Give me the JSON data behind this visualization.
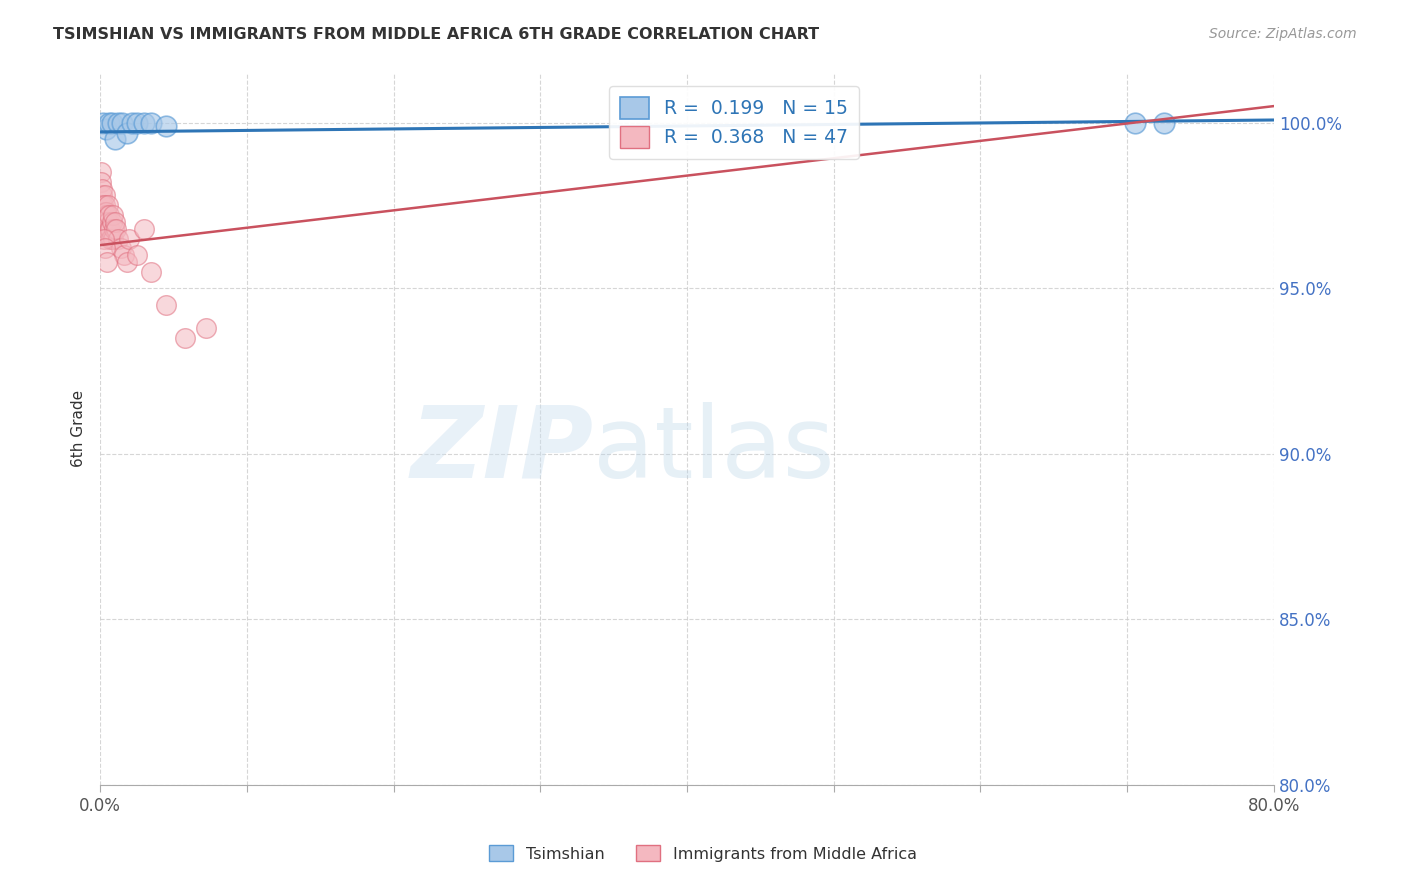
{
  "title": "TSIMSHIAN VS IMMIGRANTS FROM MIDDLE AFRICA 6TH GRADE CORRELATION CHART",
  "source": "Source: ZipAtlas.com",
  "ylabel": "6th Grade",
  "xlim": [
    0.0,
    80.0
  ],
  "ylim": [
    80.0,
    101.5
  ],
  "yticks": [
    80.0,
    85.0,
    90.0,
    95.0,
    100.0
  ],
  "xticks": [
    0.0,
    10.0,
    20.0,
    30.0,
    40.0,
    50.0,
    60.0,
    70.0,
    80.0
  ],
  "tsimshian_color": "#a8c8e8",
  "tsimshian_edge": "#5b9bd5",
  "immigrants_color": "#f4b8c0",
  "immigrants_edge": "#e07080",
  "tsimshian_line_color": "#2e75b6",
  "immigrants_line_color": "#c9515e",
  "R_tsimshian": 0.199,
  "N_tsimshian": 15,
  "R_immigrants": 0.368,
  "N_immigrants": 47,
  "legend_label_1": "Tsimshian",
  "legend_label_2": "Immigrants from Middle Africa",
  "watermark_zip": "ZIP",
  "watermark_atlas": "atlas",
  "ytick_color": "#4472c4",
  "xtick_show_only_ends": true,
  "tsimshian_x": [
    0.2,
    0.4,
    0.6,
    0.8,
    1.0,
    1.2,
    1.5,
    1.8,
    2.2,
    2.5,
    3.0,
    3.5,
    4.5,
    70.5,
    72.5
  ],
  "tsimshian_y": [
    100.0,
    99.8,
    100.0,
    100.0,
    99.5,
    100.0,
    100.0,
    99.7,
    100.0,
    100.0,
    100.0,
    100.0,
    99.9,
    100.0,
    100.0
  ],
  "immigrants_x": [
    0.05,
    0.08,
    0.1,
    0.12,
    0.15,
    0.18,
    0.2,
    0.22,
    0.25,
    0.28,
    0.3,
    0.3,
    0.32,
    0.35,
    0.38,
    0.4,
    0.42,
    0.45,
    0.48,
    0.5,
    0.52,
    0.55,
    0.58,
    0.6,
    0.65,
    0.7,
    0.75,
    0.8,
    0.85,
    0.9,
    0.95,
    1.0,
    1.1,
    1.2,
    1.4,
    1.6,
    1.8,
    2.0,
    2.5,
    3.0,
    3.5,
    4.5,
    5.8,
    7.2,
    0.25,
    0.35,
    0.45
  ],
  "immigrants_y": [
    98.5,
    98.2,
    97.8,
    98.0,
    97.5,
    97.3,
    97.0,
    97.5,
    97.2,
    97.0,
    97.3,
    97.8,
    97.5,
    97.2,
    97.0,
    96.8,
    97.3,
    97.0,
    96.8,
    97.2,
    97.5,
    97.0,
    96.8,
    97.2,
    96.5,
    96.8,
    96.5,
    97.0,
    96.5,
    97.2,
    96.8,
    97.0,
    96.8,
    96.5,
    96.2,
    96.0,
    95.8,
    96.5,
    96.0,
    96.8,
    95.5,
    94.5,
    93.5,
    93.8,
    96.5,
    96.2,
    95.8
  ],
  "blue_line_x": [
    0.0,
    80.0
  ],
  "blue_line_y": [
    99.72,
    100.08
  ],
  "pink_line_x": [
    0.0,
    80.0
  ],
  "pink_line_y": [
    96.3,
    100.5
  ]
}
